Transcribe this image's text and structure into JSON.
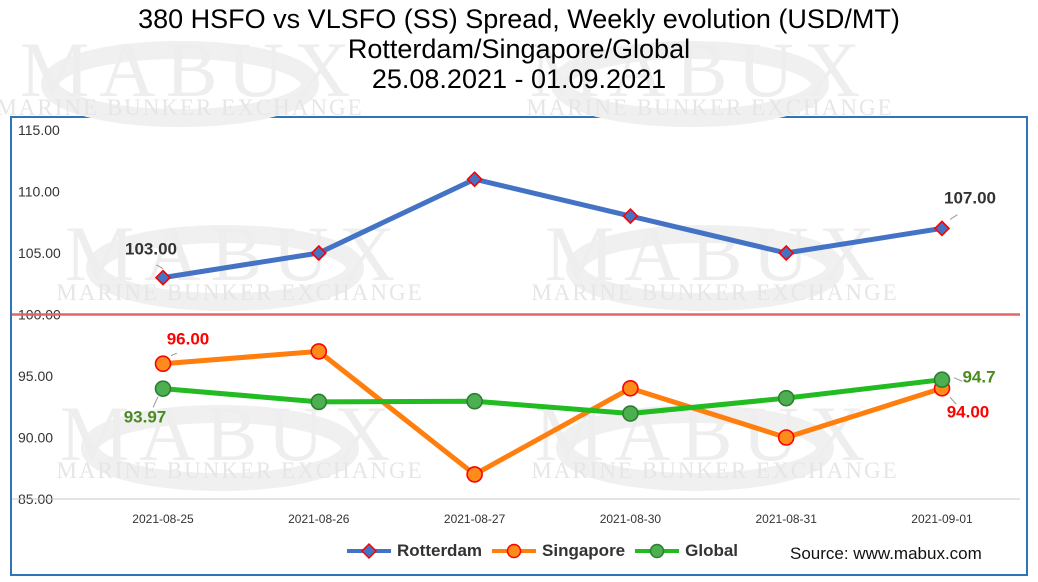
{
  "page": {
    "title_line1": "380 HSFO vs VLSFO (SS) Spread, Weekly evolution (USD/MT)",
    "title_line2": "Rotterdam/Singapore/Global",
    "title_line3": "25.08.2021 - 01.09.2021",
    "source": "Source: www.mabux.com",
    "watermark_text": "MABUX",
    "watermark_subtext": "MARINE BUNKER EXCHANGE"
  },
  "chart_data": {
    "type": "line",
    "title": "380 HSFO vs VLSFO (SS) Spread, Weekly evolution (USD/MT)",
    "subtitle": "Rotterdam/Singapore/Global",
    "date_range": "25.08.2021 - 01.09.2021",
    "categories": [
      "2021-08-25",
      "2021-08-26",
      "2021-08-27",
      "2021-08-30",
      "2021-08-31",
      "2021-09-01"
    ],
    "ylim": [
      85,
      115
    ],
    "yticks": [
      85,
      90,
      95,
      100,
      105,
      110,
      115
    ],
    "ytick_labels": [
      "85.00",
      "90.00",
      "95.00",
      "100.00",
      "105.00",
      "110.00",
      "115.00"
    ],
    "reference_line": {
      "value": 100,
      "color": "#e06666"
    },
    "series": [
      {
        "name": "Rotterdam",
        "color": "#4472c4",
        "marker": "diamond",
        "marker_fill": "#4472c4",
        "marker_edge": "#ff0000",
        "values": [
          103,
          105,
          111,
          108,
          105,
          107
        ],
        "labels": [
          {
            "index": 0,
            "text": "103.00",
            "color": "#333333"
          },
          {
            "index": 5,
            "text": "107.00",
            "color": "#333333"
          }
        ]
      },
      {
        "name": "Singapore",
        "color": "#ff7f0e",
        "marker": "circle",
        "marker_fill": "#ff8c1a",
        "marker_edge": "#ff0000",
        "values": [
          96,
          97,
          87,
          94,
          90,
          94
        ],
        "labels": [
          {
            "index": 0,
            "text": "96.00",
            "color": "#ff0000"
          },
          {
            "index": 5,
            "text": "94.00",
            "color": "#ff0000"
          }
        ]
      },
      {
        "name": "Global",
        "color": "#22bb22",
        "marker": "circle",
        "marker_fill": "#4caf50",
        "marker_edge": "#2e7d32",
        "values": [
          93.97,
          92.9,
          92.95,
          91.95,
          93.2,
          94.7
        ],
        "labels": [
          {
            "index": 0,
            "text": "93.97",
            "color": "#4a8b21"
          },
          {
            "index": 5,
            "text": "94.7",
            "color": "#4a8b21"
          }
        ]
      }
    ],
    "legend": [
      "Rotterdam",
      "Singapore",
      "Global"
    ],
    "legend_position": "bottom-center",
    "grid": false
  }
}
